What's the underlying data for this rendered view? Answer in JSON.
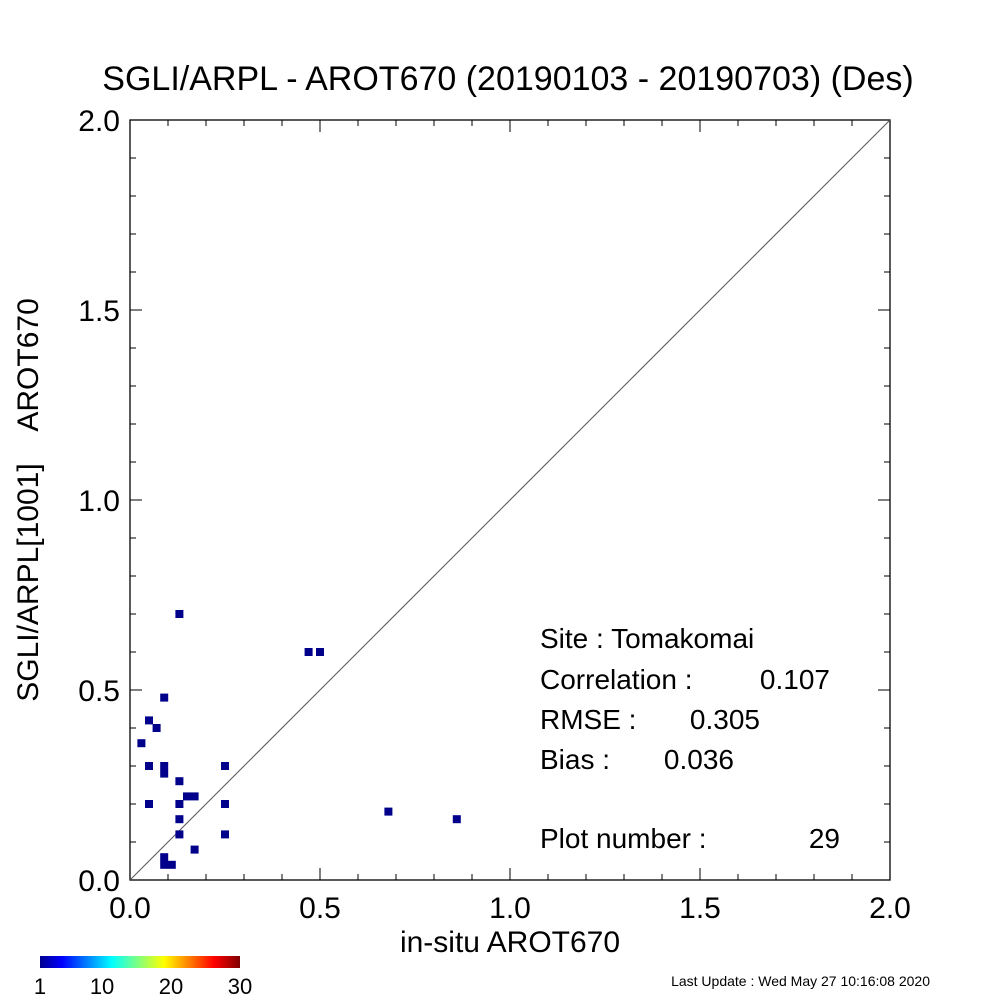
{
  "chart_data": {
    "type": "scatter",
    "title": "SGLI/ARPL - AROT670 (20190103 - 20190703) (Des)",
    "xlabel": "in-situ AROT670",
    "ylabel": "SGLI/ARPL[1001]    AROT670",
    "xlim": [
      0,
      2
    ],
    "ylim": [
      0,
      2
    ],
    "x_ticks": [
      "0.0",
      "0.5",
      "1.0",
      "1.5",
      "2.0"
    ],
    "y_ticks": [
      "0.0",
      "0.5",
      "1.0",
      "1.5",
      "2.0"
    ],
    "reference_line": "1:1",
    "grid": false,
    "marker_color": "#00008b",
    "points": [
      {
        "x": 0.13,
        "y": 0.7
      },
      {
        "x": 0.47,
        "y": 0.6
      },
      {
        "x": 0.5,
        "y": 0.6
      },
      {
        "x": 0.09,
        "y": 0.48
      },
      {
        "x": 0.05,
        "y": 0.42
      },
      {
        "x": 0.07,
        "y": 0.4
      },
      {
        "x": 0.03,
        "y": 0.36
      },
      {
        "x": 0.05,
        "y": 0.3
      },
      {
        "x": 0.09,
        "y": 0.3
      },
      {
        "x": 0.09,
        "y": 0.28
      },
      {
        "x": 0.25,
        "y": 0.3
      },
      {
        "x": 0.13,
        "y": 0.26
      },
      {
        "x": 0.15,
        "y": 0.22
      },
      {
        "x": 0.17,
        "y": 0.22
      },
      {
        "x": 0.05,
        "y": 0.2
      },
      {
        "x": 0.13,
        "y": 0.2
      },
      {
        "x": 0.25,
        "y": 0.2
      },
      {
        "x": 0.68,
        "y": 0.18
      },
      {
        "x": 0.86,
        "y": 0.16
      },
      {
        "x": 0.13,
        "y": 0.16
      },
      {
        "x": 0.13,
        "y": 0.12
      },
      {
        "x": 0.25,
        "y": 0.12
      },
      {
        "x": 0.17,
        "y": 0.08
      },
      {
        "x": 0.09,
        "y": 0.06
      },
      {
        "x": 0.09,
        "y": 0.04
      },
      {
        "x": 0.11,
        "y": 0.04
      }
    ],
    "stats": {
      "site": "Site : Tomakomai",
      "correlation_label": "Correlation :",
      "correlation_value": "0.107",
      "rmse_label": "RMSE :",
      "rmse_value": "0.305",
      "bias_label": "Bias :",
      "bias_value": "0.036",
      "plot_number_label": "Plot number :",
      "plot_number_value": "29"
    },
    "colorbar": {
      "min": 1,
      "max": 30,
      "tick_labels": [
        "1",
        "10",
        "20",
        "30"
      ],
      "tick_values": [
        1,
        10,
        20,
        30
      ]
    }
  },
  "footer": {
    "last_update": "Last Update : Wed May 27 10:16:08 2020"
  }
}
